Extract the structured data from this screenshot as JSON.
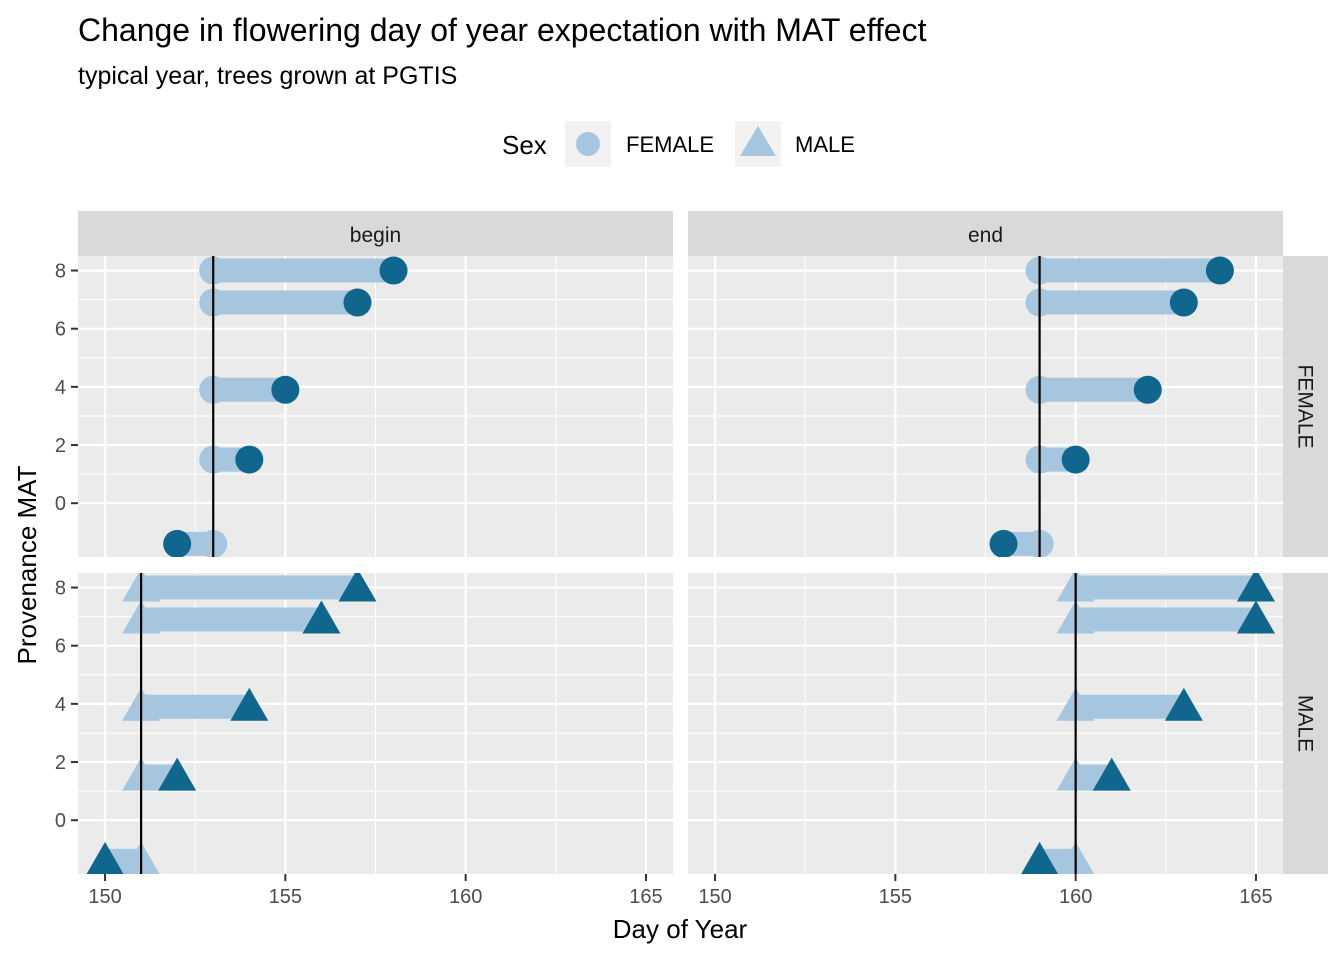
{
  "chart_data": {
    "type": "dumbbell",
    "title": "Change in flowering day of year expectation with MAT effect",
    "subtitle": "typical year, trees grown at PGTIS",
    "xlabel": "Day of Year",
    "ylabel": "Provenance MAT",
    "xlim": [
      149.25,
      165.75
    ],
    "x_ticks": [
      150,
      155,
      160,
      165
    ],
    "ylim": [
      -1.85,
      8.5
    ],
    "y_ticks": [
      0,
      2,
      4,
      6,
      8
    ],
    "grid": true,
    "legend": {
      "title": "Sex",
      "position": "top",
      "entries": [
        {
          "label": "FEMALE",
          "shape": "circle"
        },
        {
          "label": "MALE",
          "shape": "triangle"
        }
      ]
    },
    "colors": {
      "baseline": "#a6c5de",
      "effect": "#10668d",
      "panel_bg": "#ebebeb",
      "strip_bg": "#d9d9d9",
      "reference_line": "#000000"
    },
    "col_facets": [
      "begin",
      "end"
    ],
    "row_facets": [
      "FEMALE",
      "MALE"
    ],
    "panels": [
      {
        "col": "begin",
        "row": "FEMALE",
        "shape": "circle",
        "reference_x": 153,
        "points": [
          {
            "mat": 8.0,
            "baseline": 153,
            "effect": 158
          },
          {
            "mat": 6.9,
            "baseline": 153,
            "effect": 157
          },
          {
            "mat": 3.9,
            "baseline": 153,
            "effect": 155
          },
          {
            "mat": 1.5,
            "baseline": 153,
            "effect": 154
          },
          {
            "mat": -1.4,
            "baseline": 153,
            "effect": 152
          }
        ]
      },
      {
        "col": "end",
        "row": "FEMALE",
        "shape": "circle",
        "reference_x": 159,
        "points": [
          {
            "mat": 8.0,
            "baseline": 159,
            "effect": 164
          },
          {
            "mat": 6.9,
            "baseline": 159,
            "effect": 163
          },
          {
            "mat": 3.9,
            "baseline": 159,
            "effect": 162
          },
          {
            "mat": 1.5,
            "baseline": 159,
            "effect": 160
          },
          {
            "mat": -1.4,
            "baseline": 159,
            "effect": 158
          }
        ]
      },
      {
        "col": "begin",
        "row": "MALE",
        "shape": "triangle",
        "reference_x": 151,
        "points": [
          {
            "mat": 8.0,
            "baseline": 151,
            "effect": 157
          },
          {
            "mat": 6.9,
            "baseline": 151,
            "effect": 156
          },
          {
            "mat": 3.9,
            "baseline": 151,
            "effect": 154
          },
          {
            "mat": 1.5,
            "baseline": 151,
            "effect": 152
          },
          {
            "mat": -1.4,
            "baseline": 151,
            "effect": 150
          }
        ]
      },
      {
        "col": "end",
        "row": "MALE",
        "shape": "triangle",
        "reference_x": 160,
        "points": [
          {
            "mat": 8.0,
            "baseline": 160,
            "effect": 165
          },
          {
            "mat": 6.9,
            "baseline": 160,
            "effect": 165
          },
          {
            "mat": 3.9,
            "baseline": 160,
            "effect": 163
          },
          {
            "mat": 1.5,
            "baseline": 160,
            "effect": 161
          },
          {
            "mat": -1.4,
            "baseline": 160,
            "effect": 159
          }
        ]
      }
    ]
  }
}
